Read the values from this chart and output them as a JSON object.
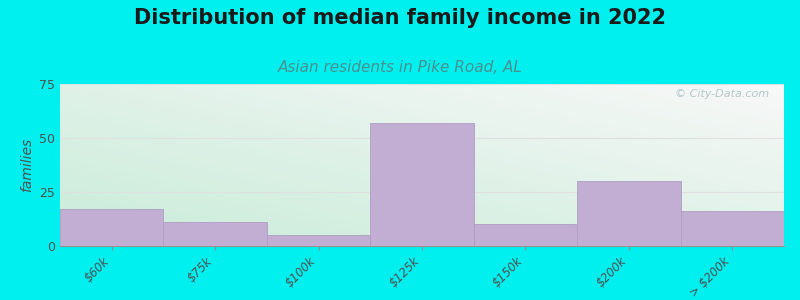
{
  "title": "Distribution of median family income in 2022",
  "subtitle": "Asian residents in Pike Road, AL",
  "categories": [
    "$60k",
    "$75k",
    "$100k",
    "$125k",
    "$150k",
    "$200k",
    "> $200k"
  ],
  "values": [
    17,
    11,
    5,
    57,
    10,
    30,
    16
  ],
  "bar_color": "#c2aed2",
  "bar_edge_color": "#b09ec4",
  "ylabel": "families",
  "ylim": [
    0,
    75
  ],
  "yticks": [
    0,
    25,
    50,
    75
  ],
  "bg_color_topleft": "#c8ecd8",
  "bg_color_right": "#f5f5f5",
  "outer_bg": "#00f0f0",
  "title_fontsize": 15,
  "subtitle_fontsize": 11,
  "subtitle_color": "#4a9090",
  "watermark_text": "© City-Data.com",
  "grid_color": "#e0e0e0",
  "tick_label_fontsize": 8.5
}
